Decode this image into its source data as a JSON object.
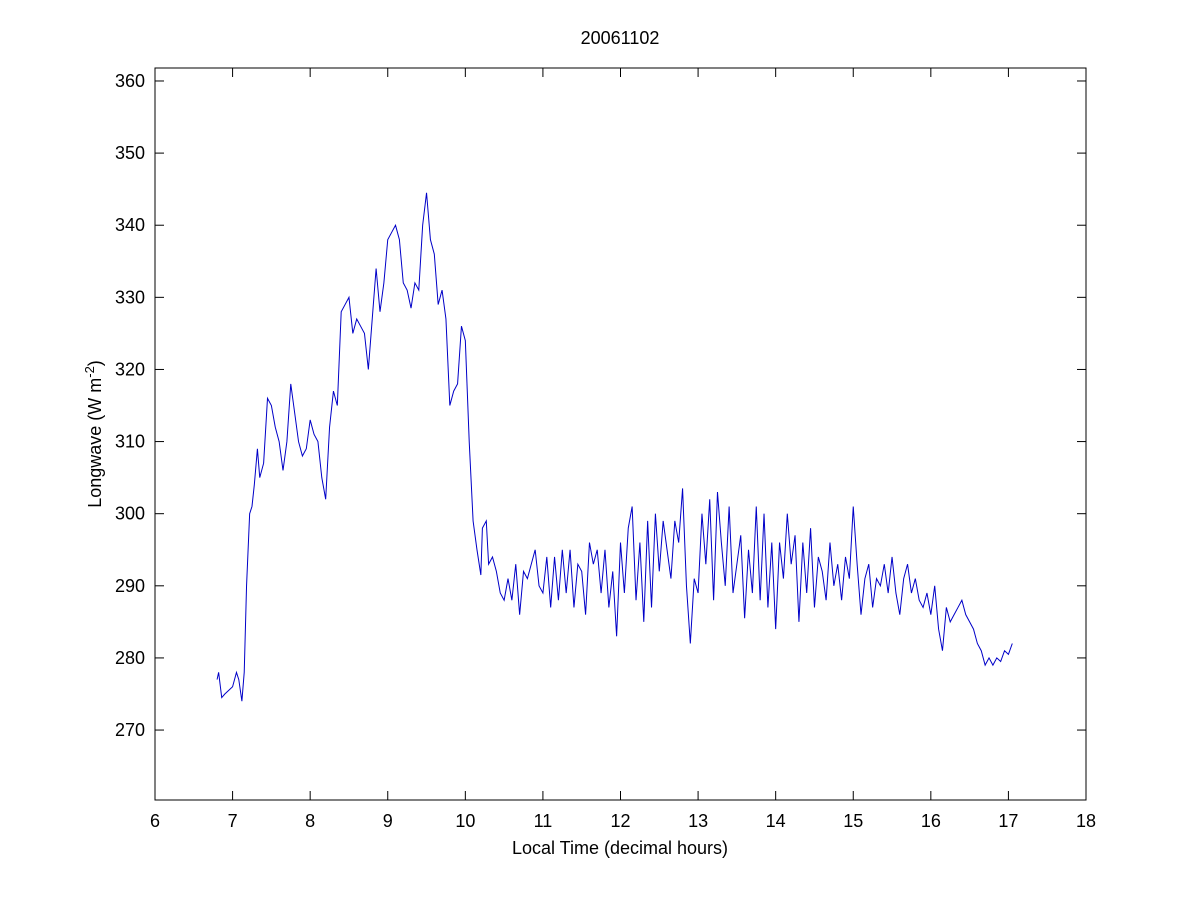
{
  "chart_data": {
    "type": "line",
    "title": "20061102",
    "xlabel": "Local Time (decimal hours)",
    "ylabel": [
      "Longwave (W m",
      "-2",
      ")"
    ],
    "color": "#0000c8",
    "xlim": [
      6,
      18
    ],
    "xticks": [
      6,
      7,
      8,
      9,
      10,
      11,
      12,
      13,
      14,
      15,
      16,
      17,
      18
    ],
    "ylim": [
      260.3,
      361.8
    ],
    "yticks": [
      270,
      280,
      290,
      300,
      310,
      320,
      330,
      340,
      350,
      360
    ],
    "grid": false,
    "x": [
      6.8,
      6.82,
      6.86,
      6.9,
      6.95,
      7.0,
      7.05,
      7.08,
      7.12,
      7.15,
      7.18,
      7.22,
      7.25,
      7.28,
      7.32,
      7.35,
      7.4,
      7.45,
      7.5,
      7.55,
      7.6,
      7.65,
      7.7,
      7.75,
      7.8,
      7.85,
      7.9,
      7.95,
      8.0,
      8.05,
      8.1,
      8.15,
      8.2,
      8.25,
      8.3,
      8.35,
      8.4,
      8.45,
      8.5,
      8.55,
      8.6,
      8.65,
      8.7,
      8.75,
      8.8,
      8.85,
      8.9,
      8.95,
      9.0,
      9.05,
      9.1,
      9.15,
      9.2,
      9.25,
      9.3,
      9.35,
      9.4,
      9.45,
      9.5,
      9.55,
      9.6,
      9.65,
      9.7,
      9.75,
      9.8,
      9.85,
      9.9,
      9.95,
      10.0,
      10.05,
      10.1,
      10.15,
      10.2,
      10.22,
      10.27,
      10.3,
      10.35,
      10.4,
      10.45,
      10.5,
      10.55,
      10.6,
      10.65,
      10.7,
      10.75,
      10.8,
      10.85,
      10.9,
      10.95,
      11.0,
      11.05,
      11.1,
      11.15,
      11.2,
      11.25,
      11.3,
      11.35,
      11.4,
      11.45,
      11.5,
      11.55,
      11.6,
      11.65,
      11.7,
      11.75,
      11.8,
      11.85,
      11.9,
      11.95,
      12.0,
      12.05,
      12.1,
      12.15,
      12.2,
      12.25,
      12.3,
      12.35,
      12.4,
      12.45,
      12.5,
      12.55,
      12.6,
      12.65,
      12.7,
      12.75,
      12.8,
      12.85,
      12.9,
      12.95,
      13.0,
      13.05,
      13.1,
      13.15,
      13.2,
      13.25,
      13.3,
      13.35,
      13.4,
      13.45,
      13.5,
      13.55,
      13.6,
      13.65,
      13.7,
      13.75,
      13.8,
      13.85,
      13.9,
      13.95,
      14.0,
      14.05,
      14.1,
      14.15,
      14.2,
      14.25,
      14.3,
      14.35,
      14.4,
      14.45,
      14.5,
      14.55,
      14.6,
      14.65,
      14.7,
      14.75,
      14.8,
      14.85,
      14.9,
      14.95,
      15.0,
      15.05,
      15.1,
      15.15,
      15.2,
      15.25,
      15.3,
      15.35,
      15.4,
      15.45,
      15.5,
      15.55,
      15.6,
      15.65,
      15.7,
      15.75,
      15.8,
      15.85,
      15.9,
      15.95,
      16.0,
      16.05,
      16.1,
      16.15,
      16.2,
      16.25,
      16.3,
      16.35,
      16.4,
      16.45,
      16.5,
      16.55,
      16.6,
      16.65,
      16.7,
      16.75,
      16.8,
      16.85,
      16.9,
      16.95,
      17.0,
      17.05
    ],
    "values": [
      277,
      278,
      274.5,
      275,
      275.5,
      276,
      278,
      277,
      274,
      278,
      290,
      300,
      301,
      304,
      309,
      305,
      307,
      316,
      315,
      312,
      310,
      306,
      310,
      318,
      314,
      310,
      308,
      309,
      313,
      311,
      310,
      305,
      302,
      312,
      317,
      315,
      328,
      329,
      330,
      325,
      327,
      326,
      325,
      320,
      327,
      334,
      328,
      332,
      338,
      339,
      340,
      338,
      332,
      331,
      328.5,
      332,
      331,
      340,
      344.5,
      338,
      336,
      329,
      331,
      327,
      315,
      317,
      318,
      326,
      324,
      310,
      299,
      295,
      291.5,
      298,
      299,
      293,
      294,
      292,
      289,
      288,
      291,
      288,
      293,
      286,
      292,
      291,
      293,
      295,
      290,
      289,
      294,
      287,
      294,
      288,
      295,
      289,
      295,
      287,
      293,
      292,
      286,
      296,
      293,
      295,
      289,
      295,
      287,
      292,
      283,
      296,
      289,
      298,
      301,
      288,
      296,
      285,
      299,
      287,
      300,
      292,
      299,
      295,
      291,
      299,
      296,
      303.5,
      290,
      282,
      291,
      289,
      300,
      293,
      302,
      288,
      303,
      296,
      290,
      301,
      289,
      293,
      297,
      285.5,
      295,
      289,
      301,
      288,
      300,
      287,
      296,
      284,
      296,
      291,
      300,
      293,
      297,
      285,
      296,
      289,
      298,
      287,
      294,
      292,
      288,
      296,
      290,
      293,
      288,
      294,
      291,
      301,
      293,
      286,
      291,
      293,
      287,
      291,
      290,
      293,
      289,
      294,
      289,
      286,
      291,
      293,
      289,
      291,
      288,
      287,
      289,
      286,
      290,
      284,
      281,
      287,
      285,
      286,
      287,
      288,
      286,
      285,
      284,
      282,
      281,
      279,
      280,
      279,
      280,
      279.5,
      281,
      280.5,
      282
    ]
  }
}
